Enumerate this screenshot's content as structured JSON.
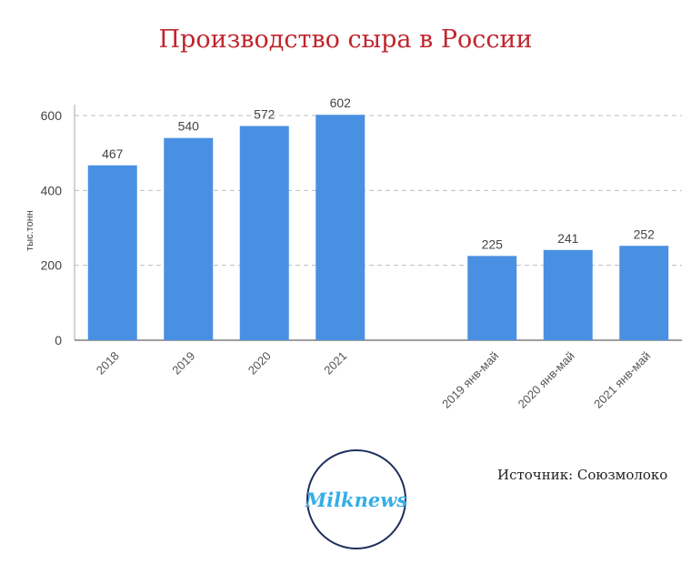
{
  "title": "Производство сыра в России",
  "source": "Источник: Союзмолоко",
  "logo_text": "Milknews",
  "colors": {
    "bar": "#4a90e2",
    "title": "#c0262d",
    "axis": "#666666",
    "grid": "#bdbdbd",
    "logo_border": "#1f2f5c",
    "logo_text": "#35aee6"
  },
  "chart_data": {
    "type": "bar",
    "title": "Производство сыра в России",
    "ylabel": "тыс.тонн",
    "xlabel": "",
    "categories": [
      "2018",
      "2019",
      "2020",
      "2021",
      "",
      "2019 янв-май",
      "2020 янв-май",
      "2021 янв-май"
    ],
    "values": [
      467,
      540,
      572,
      602,
      null,
      225,
      241,
      252
    ],
    "data_labels": [
      "467",
      "540",
      "572",
      "602",
      "",
      "225",
      "241",
      "252"
    ],
    "yticks": [
      0,
      200,
      400,
      600
    ],
    "ylim": [
      0,
      600
    ],
    "grid": true,
    "legend": "none"
  }
}
